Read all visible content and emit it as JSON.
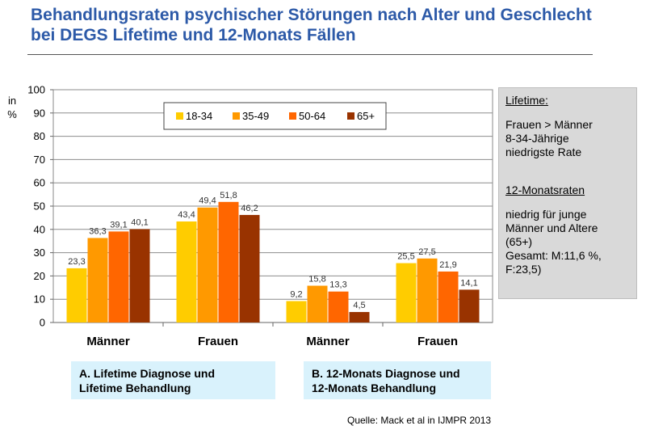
{
  "title": "Behandlungsraten psychischer Störungen nach Alter und Geschlecht bei DEGS Lifetime und 12-Monats Fällen",
  "y_unit": "in %",
  "chart_data": {
    "type": "bar",
    "title": "",
    "xlabel": "",
    "ylabel": "in %",
    "ylim": [
      0,
      100
    ],
    "yticks": [
      0,
      10,
      20,
      30,
      40,
      50,
      60,
      70,
      80,
      90,
      100
    ],
    "grid": true,
    "legend_position": "top-center",
    "categories": [
      "Männer",
      "Frauen",
      "Männer",
      "Frauen"
    ],
    "series": [
      {
        "name": "18-34",
        "color": "#ffcc00",
        "values": [
          23.3,
          43.4,
          9.2,
          25.5
        ],
        "labels": [
          "23,3",
          "43,4",
          "9,2",
          "25,5"
        ]
      },
      {
        "name": "35-49",
        "color": "#ff9900",
        "values": [
          36.3,
          49.4,
          15.8,
          27.5
        ],
        "labels": [
          "36,3",
          "49,4",
          "15,8",
          "27,5"
        ]
      },
      {
        "name": "50-64",
        "color": "#ff6600",
        "values": [
          39.1,
          51.8,
          13.3,
          21.9
        ],
        "labels": [
          "39,1",
          "51,8",
          "13,3",
          "21,9"
        ]
      },
      {
        "name": "65+",
        "color": "#993300",
        "values": [
          40.1,
          46.2,
          4.5,
          14.1
        ],
        "labels": [
          "40,1",
          "46,2",
          "4,5",
          "14,1"
        ]
      }
    ]
  },
  "side_box": {
    "lifetime_heading": "Lifetime:",
    "lifetime_text": "Frauen > Männer\n8-34-Jährige\n   niedrigste Rate",
    "monthly_heading": "12-Monatsraten",
    "monthly_text": "niedrig für junge\n   Männer und Altere\n   (65+)\nGesamt: M:11,6 %,\n   F:23,5)"
  },
  "caption_a": "A. Lifetime Diagnose und\nLifetime Behandlung",
  "caption_b": "B. 12-Monats Diagnose und\n12-Monats Behandlung",
  "source": "Quelle: Mack et al in IJMPR 2013"
}
